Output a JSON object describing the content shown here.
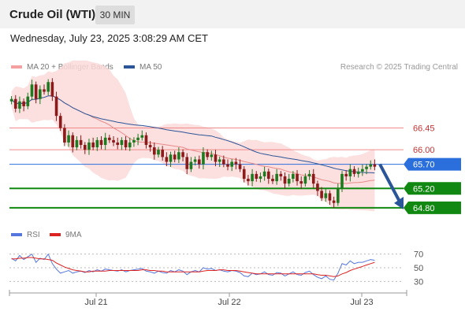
{
  "header": {
    "title": "Crude Oil (WTI)",
    "timeframe": "30 MIN"
  },
  "datetime": "Wednesday, July 23, 2025 3:08:29 AM CET",
  "legend": {
    "ma20_label": "MA 20 + Bollinger Bands",
    "ma50_label": "MA 50",
    "credit": "Research © 2025 Trading Central",
    "rsi_label": "RSI",
    "rsi_ma_label": "9MA"
  },
  "colors": {
    "ma20": "#e88a8a",
    "ma50": "#2a5598",
    "bands_fill": "#fbd9d9",
    "candle_up": "#1e7a1e",
    "candle_down": "#8b1a1a",
    "resistance": "#f08a8a",
    "support": "#118811",
    "current": "#2a6fdc",
    "rsi": "#5577dd",
    "rsi_ma": "#dd2222"
  },
  "chart_data": {
    "type": "candlestick",
    "x_ticks": [
      "Jul 21",
      "Jul 22",
      "Jul 23"
    ],
    "price_levels": [
      {
        "value": 66.45,
        "label": "66.45",
        "kind": "resistance"
      },
      {
        "value": 66.0,
        "label": "66.00",
        "kind": "resistance"
      },
      {
        "value": 65.7,
        "label": "65.70",
        "kind": "current"
      },
      {
        "value": 65.2,
        "label": "65.20",
        "kind": "support"
      },
      {
        "value": 64.8,
        "label": "64.80",
        "kind": "support"
      }
    ],
    "forecast_arrow": {
      "from": 65.7,
      "to": 64.8
    },
    "price_ylim": [
      64.7,
      67.55
    ],
    "closes": [
      67.05,
      66.85,
      67.0,
      66.9,
      67.1,
      67.35,
      67.05,
      67.25,
      67.2,
      67.4,
      67.1,
      66.7,
      66.45,
      66.15,
      66.3,
      66.05,
      66.2,
      66.1,
      66.0,
      66.15,
      66.05,
      66.2,
      66.1,
      66.25,
      66.2,
      66.15,
      66.1,
      66.2,
      66.05,
      66.15,
      66.2,
      66.25,
      66.3,
      66.1,
      66.05,
      65.9,
      66.0,
      65.85,
      65.75,
      65.9,
      65.8,
      65.95,
      65.85,
      65.6,
      65.75,
      65.8,
      65.7,
      65.95,
      65.85,
      65.9,
      65.75,
      65.8,
      65.7,
      65.65,
      65.75,
      65.7,
      65.6,
      65.4,
      65.35,
      65.5,
      65.4,
      65.45,
      65.55,
      65.4,
      65.35,
      65.5,
      65.45,
      65.3,
      65.4,
      65.5,
      65.35,
      65.3,
      65.45,
      65.5,
      65.3,
      65.15,
      65.0,
      65.1,
      64.95,
      64.9,
      65.2,
      65.5,
      65.45,
      65.6,
      65.5,
      65.55,
      65.6,
      65.65,
      65.7,
      65.65
    ],
    "rsi_yticks": [
      70,
      50,
      30
    ],
    "rsi_ylim": [
      20,
      80
    ],
    "rsi": [
      64,
      60,
      68,
      62,
      66,
      70,
      58,
      64,
      62,
      70,
      56,
      48,
      42,
      44,
      46,
      42,
      44,
      45,
      43,
      46,
      44,
      47,
      45,
      48,
      47,
      46,
      45,
      47,
      44,
      46,
      47,
      48,
      49,
      45,
      44,
      42,
      45,
      43,
      42,
      46,
      44,
      47,
      45,
      40,
      44,
      46,
      44,
      50,
      48,
      49,
      46,
      47,
      45,
      44,
      46,
      45,
      43,
      38,
      37,
      42,
      40,
      41,
      44,
      40,
      39,
      43,
      42,
      38,
      41,
      44,
      40,
      39,
      43,
      45,
      40,
      36,
      34,
      38,
      33,
      32,
      42,
      56,
      54,
      60,
      56,
      58,
      58,
      60,
      62,
      61
    ],
    "rsi_ma": [
      63,
      63,
      64,
      64,
      65,
      65,
      64,
      63,
      63,
      62,
      61,
      57,
      54,
      51,
      49,
      47,
      46,
      45,
      44,
      44,
      45,
      45,
      45,
      45,
      46,
      46,
      46,
      46,
      46,
      46,
      46,
      46,
      47,
      47,
      46,
      46,
      45,
      45,
      44,
      44,
      44,
      44,
      44,
      44,
      44,
      44,
      44,
      45,
      46,
      46,
      46,
      47,
      47,
      46,
      46,
      46,
      45,
      44,
      43,
      42,
      41,
      41,
      41,
      41,
      41,
      41,
      41,
      41,
      41,
      41,
      41,
      41,
      41,
      41,
      41,
      40,
      39,
      39,
      38,
      37,
      38,
      41,
      43,
      46,
      48,
      50,
      52,
      54,
      56,
      58
    ]
  }
}
